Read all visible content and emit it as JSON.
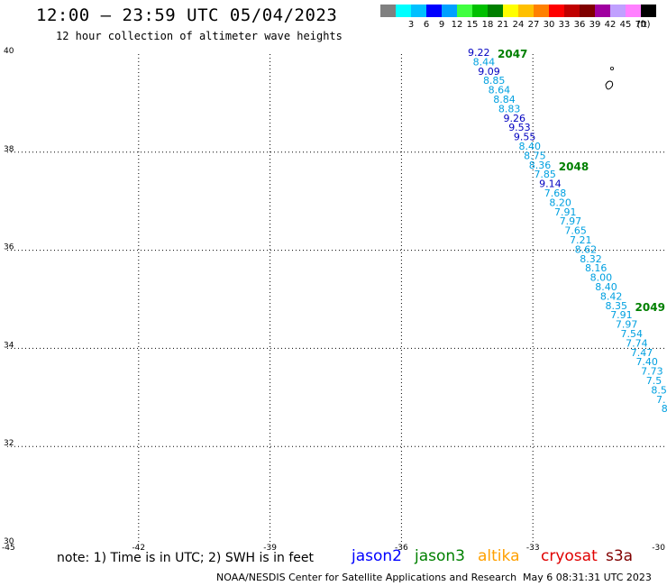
{
  "title": "12:00 – 23:59 UTC 05/04/2023",
  "subtitle": "12 hour collection of altimeter wave heights",
  "color_scale": {
    "units": "(ft)",
    "swatches": [
      {
        "label": "",
        "color": "#808080"
      },
      {
        "label": "3",
        "color": "#00ffff"
      },
      {
        "label": "6",
        "color": "#00c0ff"
      },
      {
        "label": "9",
        "color": "#0000ff"
      },
      {
        "label": "12",
        "color": "#00a0ff"
      },
      {
        "label": "15",
        "color": "#40ff40"
      },
      {
        "label": "18",
        "color": "#00c000"
      },
      {
        "label": "21",
        "color": "#008000"
      },
      {
        "label": "24",
        "color": "#ffff00"
      },
      {
        "label": "27",
        "color": "#ffc000"
      },
      {
        "label": "30",
        "color": "#ff8000"
      },
      {
        "label": "33",
        "color": "#ff0000"
      },
      {
        "label": "36",
        "color": "#c00000"
      },
      {
        "label": "39",
        "color": "#800000"
      },
      {
        "label": "42",
        "color": "#a000a0"
      },
      {
        "label": "45",
        "color": "#c0a0ff"
      },
      {
        "label": "70",
        "color": "#ff80ff"
      },
      {
        "label": "",
        "color": "#000000"
      }
    ]
  },
  "map": {
    "lat_labels": [
      "40",
      "38",
      "36",
      "34",
      "32",
      "30"
    ],
    "lon_labels": [
      "-45",
      "-42",
      "-39",
      "-36",
      "-33",
      "-30"
    ]
  },
  "track": {
    "time_labels": [
      {
        "text": "2047",
        "after": 0
      },
      {
        "text": "2048",
        "after": 12
      },
      {
        "text": "2049",
        "after": 27
      }
    ],
    "points": [
      {
        "v": "9.22",
        "c": "#0000c0"
      },
      {
        "v": "8.44",
        "c": "#00a0e0"
      },
      {
        "v": "9.09",
        "c": "#0000c0"
      },
      {
        "v": "8.85",
        "c": "#00a0e0"
      },
      {
        "v": "8.64",
        "c": "#00a0e0"
      },
      {
        "v": "8.84",
        "c": "#00a0e0"
      },
      {
        "v": "8.83",
        "c": "#00a0e0"
      },
      {
        "v": "9.26",
        "c": "#0000c0"
      },
      {
        "v": "9.53",
        "c": "#0000c0"
      },
      {
        "v": "9.55",
        "c": "#0000c0"
      },
      {
        "v": "8.40",
        "c": "#00a0e0"
      },
      {
        "v": "8.75",
        "c": "#00a0e0"
      },
      {
        "v": "8.36",
        "c": "#00a0e0"
      },
      {
        "v": "7.85",
        "c": "#00a0e0"
      },
      {
        "v": "9.14",
        "c": "#0000c0"
      },
      {
        "v": "7.68",
        "c": "#00a0e0"
      },
      {
        "v": "8.20",
        "c": "#00a0e0"
      },
      {
        "v": "7.91",
        "c": "#00a0e0"
      },
      {
        "v": "7.97",
        "c": "#00a0e0"
      },
      {
        "v": "7.65",
        "c": "#00a0e0"
      },
      {
        "v": "7.21",
        "c": "#00a0e0"
      },
      {
        "v": "8.62",
        "c": "#00a0e0"
      },
      {
        "v": "8.32",
        "c": "#00a0e0"
      },
      {
        "v": "8.16",
        "c": "#00a0e0"
      },
      {
        "v": "8.00",
        "c": "#00a0e0"
      },
      {
        "v": "8.40",
        "c": "#00a0e0"
      },
      {
        "v": "8.42",
        "c": "#00a0e0"
      },
      {
        "v": "8.35",
        "c": "#00a0e0"
      },
      {
        "v": "7.91",
        "c": "#00a0e0"
      },
      {
        "v": "7.97",
        "c": "#00a0e0"
      },
      {
        "v": "7.54",
        "c": "#00a0e0"
      },
      {
        "v": "7.74",
        "c": "#00a0e0"
      },
      {
        "v": "7.47",
        "c": "#00a0e0"
      },
      {
        "v": "7.40",
        "c": "#00a0e0"
      },
      {
        "v": "7.73",
        "c": "#00a0e0"
      },
      {
        "v": "7.5",
        "c": "#00a0e0"
      },
      {
        "v": "8.5",
        "c": "#00a0e0"
      },
      {
        "v": "7.",
        "c": "#00a0e0"
      },
      {
        "v": "8",
        "c": "#00a0e0"
      }
    ]
  },
  "note": "note:  1)  Time is in UTC;  2)  SWH is in feet",
  "satellites": [
    {
      "name": "jason2",
      "color": "#0000ff"
    },
    {
      "name": "jason3",
      "color": "#008000"
    },
    {
      "name": "altika",
      "color": "#ffa000"
    },
    {
      "name": "cryosat",
      "color": "#e00000"
    },
    {
      "name": "s3a",
      "color": "#800000"
    }
  ],
  "footer": "NOAA/NESDIS Center for Satellite Applications and Research",
  "footer_time": "May  6 08:31:31 UTC 2023"
}
